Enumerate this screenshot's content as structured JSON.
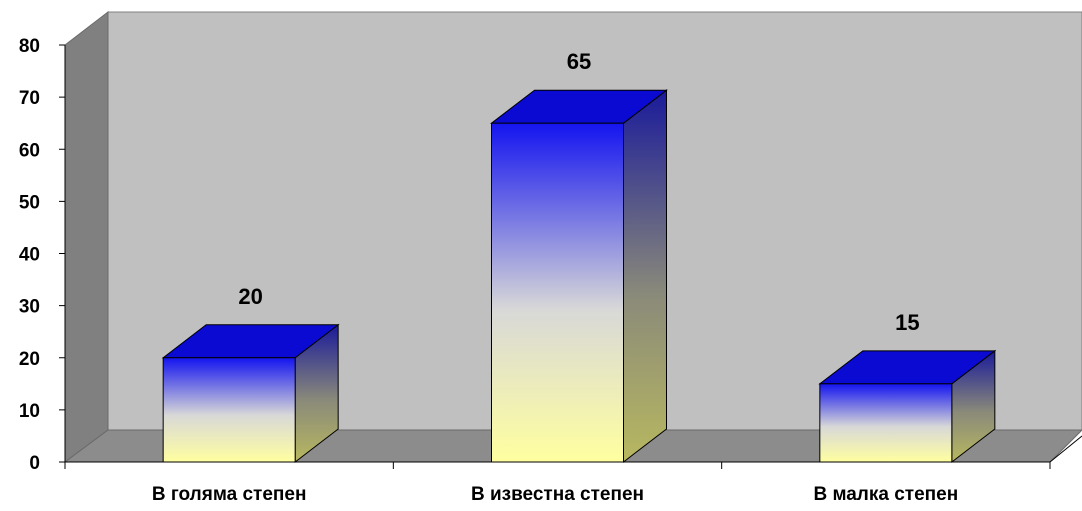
{
  "chart_data": {
    "type": "bar",
    "categories": [
      "В голяма степен",
      "В известна степен",
      "В малка степен"
    ],
    "values": [
      20,
      65,
      15
    ],
    "data_labels": [
      "20",
      "65",
      "15"
    ],
    "ylim": [
      0,
      80
    ],
    "yticks": [
      "0",
      "10",
      "20",
      "30",
      "40",
      "50",
      "60",
      "70",
      "80"
    ],
    "grid": false,
    "legend": "none",
    "style": "3d-column",
    "colors": {
      "back_wall": "#c0c0c0",
      "side_wall": "#808080",
      "floor": "#8c8c8c",
      "bar_top": "#0a0ad2",
      "bar_front_top": "#1414f0",
      "bar_front_mid": "#d8d8d8",
      "bar_front_bottom": "#ffffa0",
      "bar_side_top": "#1a1a9a",
      "bar_side_bottom": "#b8b860"
    }
  }
}
